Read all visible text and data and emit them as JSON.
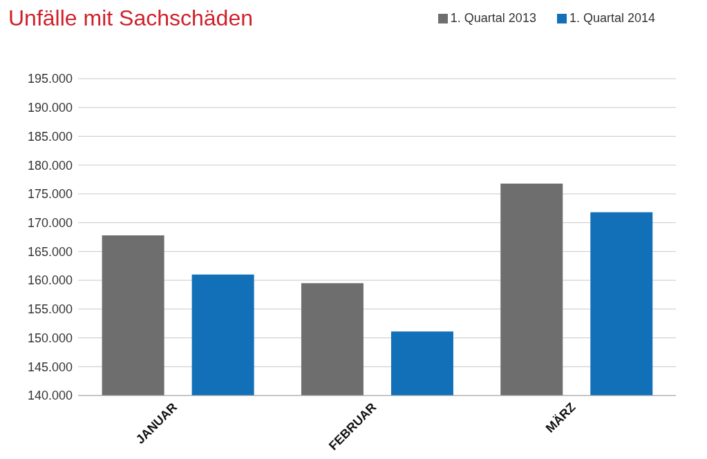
{
  "chart_data": {
    "type": "bar",
    "title": "Unfälle mit Sachschäden",
    "categories": [
      "JANUAR",
      "FEBRUAR",
      "MÄRZ"
    ],
    "series": [
      {
        "name": "1. Quartal 2013",
        "color": "#6e6e6e",
        "values": [
          167800,
          159500,
          176800
        ]
      },
      {
        "name": "1. Quartal 2014",
        "color": "#1170b8",
        "values": [
          161000,
          151100,
          171800
        ]
      }
    ],
    "ylim": [
      140000,
      195000
    ],
    "yticks": [
      {
        "value": 140000,
        "label": "140.000"
      },
      {
        "value": 145000,
        "label": "145.000"
      },
      {
        "value": 150000,
        "label": "150.000"
      },
      {
        "value": 155000,
        "label": "155.000"
      },
      {
        "value": 160000,
        "label": "160.000"
      },
      {
        "value": 165000,
        "label": "165.000"
      },
      {
        "value": 170000,
        "label": "170.000"
      },
      {
        "value": 175000,
        "label": "175.000"
      },
      {
        "value": 180000,
        "label": "180.000"
      },
      {
        "value": 185000,
        "label": "185.000"
      },
      {
        "value": 190000,
        "label": "190.000"
      },
      {
        "value": 195000,
        "label": "195.000"
      }
    ],
    "grid": "y",
    "legend": "top right"
  }
}
